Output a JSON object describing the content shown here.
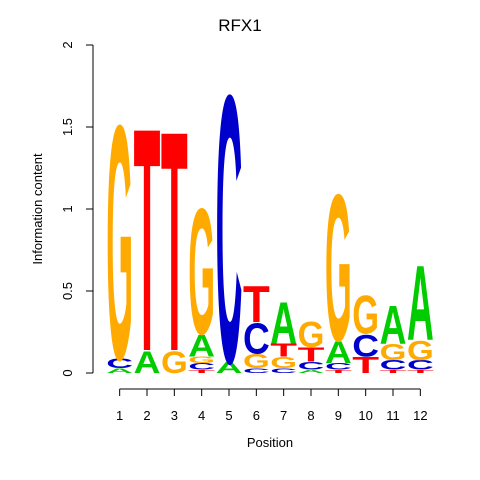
{
  "chart_data": {
    "type": "sequence-logo",
    "title": "RFX1",
    "xlabel": "Position",
    "ylabel": "Information content",
    "ylim": [
      0,
      2
    ],
    "yticks": [
      0,
      0.5,
      1,
      1.5,
      2
    ],
    "yticklabels": [
      "0",
      "0.5",
      "1",
      "1.5",
      "2"
    ],
    "positions": [
      "1",
      "2",
      "3",
      "4",
      "5",
      "6",
      "7",
      "8",
      "9",
      "10",
      "11",
      "12"
    ],
    "colors": {
      "A": "#00cc00",
      "C": "#0000cc",
      "G": "#ffaa00",
      "T": "#ff0000"
    },
    "stacks": [
      [
        {
          "letter": "A",
          "value": 0.03
        },
        {
          "letter": "C",
          "value": 0.06
        },
        {
          "letter": "G",
          "value": 1.47
        }
      ],
      [
        {
          "letter": "A",
          "value": 0.14
        },
        {
          "letter": "T",
          "value": 1.4
        }
      ],
      [
        {
          "letter": "G",
          "value": 0.14
        },
        {
          "letter": "T",
          "value": 1.38
        }
      ],
      [
        {
          "letter": "T",
          "value": 0.02
        },
        {
          "letter": "C",
          "value": 0.04
        },
        {
          "letter": "G",
          "value": 0.04
        },
        {
          "letter": "A",
          "value": 0.14
        },
        {
          "letter": "G",
          "value": 0.79
        }
      ],
      [
        {
          "letter": "A",
          "value": 0.07
        },
        {
          "letter": "C",
          "value": 1.68
        }
      ],
      [
        {
          "letter": "C",
          "value": 0.03
        },
        {
          "letter": "G",
          "value": 0.09
        },
        {
          "letter": "C",
          "value": 0.19
        },
        {
          "letter": "T",
          "value": 0.23
        }
      ],
      [
        {
          "letter": "C",
          "value": 0.03
        },
        {
          "letter": "G",
          "value": 0.07
        },
        {
          "letter": "T",
          "value": 0.08
        },
        {
          "letter": "A",
          "value": 0.26
        }
      ],
      [
        {
          "letter": "A",
          "value": 0.02
        },
        {
          "letter": "C",
          "value": 0.05
        },
        {
          "letter": "T",
          "value": 0.09
        },
        {
          "letter": "G",
          "value": 0.16
        }
      ],
      [
        {
          "letter": "T",
          "value": 0.02
        },
        {
          "letter": "C",
          "value": 0.04
        },
        {
          "letter": "A",
          "value": 0.14
        },
        {
          "letter": "G",
          "value": 0.92
        }
      ],
      [
        {
          "letter": "T",
          "value": 0.1
        },
        {
          "letter": "C",
          "value": 0.14
        },
        {
          "letter": "G",
          "value": 0.24
        }
      ],
      [
        {
          "letter": "T",
          "value": 0.02
        },
        {
          "letter": "C",
          "value": 0.06
        },
        {
          "letter": "G",
          "value": 0.1
        },
        {
          "letter": "A",
          "value": 0.24
        }
      ],
      [
        {
          "letter": "T",
          "value": 0.02
        },
        {
          "letter": "C",
          "value": 0.06
        },
        {
          "letter": "G",
          "value": 0.12
        },
        {
          "letter": "A",
          "value": 0.47
        }
      ]
    ]
  }
}
